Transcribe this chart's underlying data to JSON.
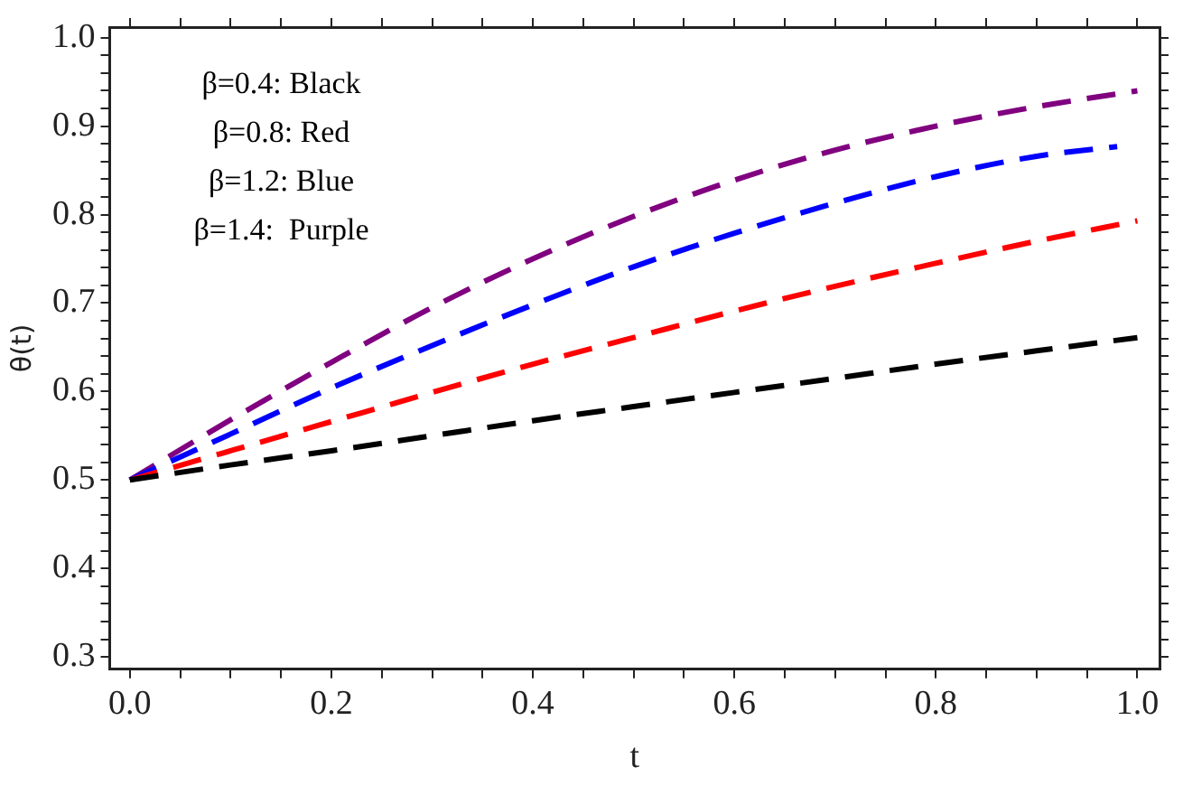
{
  "chart_data": {
    "type": "line",
    "xlabel": "t",
    "ylabel": "θ(t)",
    "x": [
      0,
      0.1,
      0.2,
      0.3,
      0.4,
      0.5,
      0.6,
      0.7,
      0.8,
      0.9,
      1.0
    ],
    "series": [
      {
        "color": "#000000",
        "values": [
          0.5,
          0.517,
          0.533,
          0.55,
          0.567,
          0.583,
          0.599,
          0.615,
          0.631,
          0.646,
          0.661
        ]
      },
      {
        "color": "#ff0000",
        "values": [
          0.5,
          0.533,
          0.566,
          0.599,
          0.631,
          0.661,
          0.691,
          0.719,
          0.745,
          0.77,
          0.793
        ]
      },
      {
        "color": "#0000ff",
        "x": [
          0,
          0.1,
          0.2,
          0.3,
          0.4,
          0.5,
          0.6,
          0.7,
          0.8,
          0.9,
          0.98
        ],
        "values": [
          0.5,
          0.552,
          0.604,
          0.652,
          0.698,
          0.741,
          0.779,
          0.813,
          0.843,
          0.866,
          0.877
        ]
      },
      {
        "color": "#800080",
        "values": [
          0.5,
          0.568,
          0.633,
          0.695,
          0.75,
          0.798,
          0.839,
          0.873,
          0.9,
          0.922,
          0.94
        ]
      }
    ],
    "annotations": [
      "β=0.4: Black",
      "β=0.8: Red",
      "β=1.2: Blue",
      "β=1.4:  Purple"
    ],
    "xlim": [
      -0.02,
      1.022
    ],
    "ylim": [
      0.286,
      1.012
    ],
    "xticks": [
      {
        "value": 0,
        "label": "0.0"
      },
      {
        "value": 0.05,
        "label": null
      },
      {
        "value": 0.1,
        "label": null
      },
      {
        "value": 0.15,
        "label": null
      },
      {
        "value": 0.2,
        "label": "0.2"
      },
      {
        "value": 0.25,
        "label": null
      },
      {
        "value": 0.3,
        "label": null
      },
      {
        "value": 0.35,
        "label": null
      },
      {
        "value": 0.4,
        "label": "0.4"
      },
      {
        "value": 0.45,
        "label": null
      },
      {
        "value": 0.5,
        "label": null
      },
      {
        "value": 0.55,
        "label": null
      },
      {
        "value": 0.6,
        "label": "0.6"
      },
      {
        "value": 0.65,
        "label": null
      },
      {
        "value": 0.7,
        "label": null
      },
      {
        "value": 0.75,
        "label": null
      },
      {
        "value": 0.8,
        "label": "0.8"
      },
      {
        "value": 0.85,
        "label": null
      },
      {
        "value": 0.9,
        "label": null
      },
      {
        "value": 0.95,
        "label": null
      },
      {
        "value": 1,
        "label": "1.0"
      }
    ],
    "yticks": [
      {
        "value": 0.3,
        "label": "0.3"
      },
      {
        "value": 0.4,
        "label": "0.4"
      },
      {
        "value": 0.5,
        "label": "0.5"
      },
      {
        "value": 0.6,
        "label": "0.6"
      },
      {
        "value": 0.7,
        "label": "0.7"
      },
      {
        "value": 0.8,
        "label": "0.8"
      },
      {
        "value": 0.9,
        "label": "0.9"
      },
      {
        "value": 1,
        "label": "1.0"
      },
      {
        "value": 0.32,
        "label": null
      },
      {
        "value": 0.34,
        "label": null
      },
      {
        "value": 0.36,
        "label": null
      },
      {
        "value": 0.38,
        "label": null
      },
      {
        "value": 0.42,
        "label": null
      },
      {
        "value": 0.44,
        "label": null
      },
      {
        "value": 0.46,
        "label": null
      },
      {
        "value": 0.48,
        "label": null
      },
      {
        "value": 0.52,
        "label": null
      },
      {
        "value": 0.54,
        "label": null
      },
      {
        "value": 0.56,
        "label": null
      },
      {
        "value": 0.58,
        "label": null
      },
      {
        "value": 0.62,
        "label": null
      },
      {
        "value": 0.64,
        "label": null
      },
      {
        "value": 0.66,
        "label": null
      },
      {
        "value": 0.68,
        "label": null
      },
      {
        "value": 0.72,
        "label": null
      },
      {
        "value": 0.74,
        "label": null
      },
      {
        "value": 0.76,
        "label": null
      },
      {
        "value": 0.78,
        "label": null
      },
      {
        "value": 0.82,
        "label": null
      },
      {
        "value": 0.84,
        "label": null
      },
      {
        "value": 0.86,
        "label": null
      },
      {
        "value": 0.88,
        "label": null
      },
      {
        "value": 0.92,
        "label": null
      },
      {
        "value": 0.94,
        "label": null
      },
      {
        "value": 0.96,
        "label": null
      },
      {
        "value": 0.98,
        "label": null
      }
    ],
    "grid": false,
    "legend": false,
    "marker": "none",
    "line_style": "dashed"
  }
}
